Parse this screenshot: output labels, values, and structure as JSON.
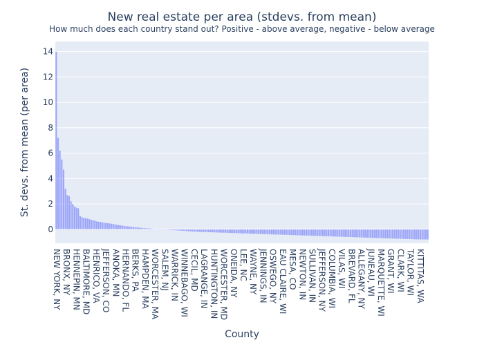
{
  "chart_data": {
    "type": "bar",
    "title": "New real estate per area (stdevs. from mean)",
    "subtitle": "How much does each country stand out? Positive - above average, negative - below average",
    "xlabel": "County",
    "ylabel": "St. devs. from mean (per area)",
    "ylim": [
      -1.1,
      14.8
    ],
    "yticks": [
      0,
      2,
      4,
      6,
      8,
      10,
      12,
      14
    ],
    "grid": true,
    "legend": "none",
    "x_tick_labels": [
      "NEW YORK, NY",
      "BRONX, NY",
      "HENNEPIN, MN",
      "BALTIMORE, MD",
      "HENRICO, VA",
      "JEFFERSON, CO",
      "ANOKA, MN",
      "HERNANDO, FL",
      "BERKS, PA",
      "HAMPDEN, MA",
      "WORCESTER, MA",
      "SALEM, NJ",
      "WARRICK, IN",
      "WINNEBAGO, WI",
      "CECIL, MD",
      "LAGRANGE, IN",
      "HUNTINGTON, IN",
      "WORCESTER, MD",
      "ONEIDA, NY",
      "LEE, NC",
      "WAYNE, NY",
      "JENNINGS, IN",
      "OSWEGO, NY",
      "EAU CLAIRE, WI",
      "MESA, CO",
      "NEWTON, IN",
      "SULLIVAN, IN",
      "JEFFERSON, NY",
      "COLUMBIA, WI",
      "VILAS, WI",
      "BREVARD, FL",
      "ALLEGANY, NY",
      "JUNEAU, WI",
      "MARQUETTE, WI",
      "GRANT, WI",
      "CLARK, WI",
      "TAYLOR, WI",
      "KITTITAS, WA"
    ],
    "values": [
      14.0,
      7.2,
      6.2,
      5.5,
      4.7,
      3.2,
      2.7,
      2.6,
      2.2,
      2.0,
      1.8,
      1.7,
      1.65,
      1.05,
      0.95,
      0.9,
      0.88,
      0.85,
      0.8,
      0.75,
      0.72,
      0.68,
      0.62,
      0.6,
      0.58,
      0.55,
      0.52,
      0.5,
      0.48,
      0.46,
      0.44,
      0.42,
      0.38,
      0.36,
      0.33,
      0.31,
      0.29,
      0.27,
      0.25,
      0.23,
      0.21,
      0.2,
      0.18,
      0.16,
      0.15,
      0.13,
      0.12,
      0.1,
      0.09,
      0.08,
      0.07,
      0.06,
      0.05,
      0.04,
      0.03,
      0.02,
      0.01,
      0.0,
      -0.01,
      -0.02,
      -0.03,
      -0.04,
      -0.05,
      -0.06,
      -0.07,
      -0.08,
      -0.09,
      -0.1,
      -0.11,
      -0.12,
      -0.13,
      -0.14,
      -0.15,
      -0.16,
      -0.17,
      -0.18,
      -0.19,
      -0.2,
      -0.2,
      -0.21,
      -0.21,
      -0.22,
      -0.22,
      -0.23,
      -0.23,
      -0.24,
      -0.24,
      -0.25,
      -0.25,
      -0.26,
      -0.26,
      -0.27,
      -0.27,
      -0.28,
      -0.28,
      -0.29,
      -0.29,
      -0.3,
      -0.3,
      -0.31,
      -0.31,
      -0.32,
      -0.32,
      -0.33,
      -0.33,
      -0.34,
      -0.34,
      -0.35,
      -0.35,
      -0.36,
      -0.36,
      -0.37,
      -0.37,
      -0.38,
      -0.38,
      -0.39,
      -0.39,
      -0.4,
      -0.4,
      -0.41,
      -0.41,
      -0.42,
      -0.42,
      -0.43,
      -0.43,
      -0.44,
      -0.44,
      -0.45,
      -0.45,
      -0.46,
      -0.46,
      -0.47,
      -0.47,
      -0.48,
      -0.48,
      -0.49,
      -0.49,
      -0.5,
      -0.5,
      -0.51,
      -0.51,
      -0.52,
      -0.52,
      -0.53,
      -0.53,
      -0.54,
      -0.54,
      -0.55,
      -0.55,
      -0.56,
      -0.56,
      -0.57,
      -0.57,
      -0.58,
      -0.58,
      -0.59,
      -0.59,
      -0.6,
      -0.6,
      -0.61,
      -0.61,
      -0.62,
      -0.62,
      -0.63,
      -0.63,
      -0.64,
      -0.64,
      -0.65,
      -0.65,
      -0.66,
      -0.66,
      -0.67,
      -0.67,
      -0.68,
      -0.68,
      -0.69,
      -0.69,
      -0.7,
      -0.7,
      -0.71,
      -0.71,
      -0.72,
      -0.72,
      -0.73,
      -0.73,
      -0.74,
      -0.74,
      -0.75,
      -0.75,
      -0.76,
      -0.76,
      -0.77,
      -0.77,
      -0.78,
      -0.78,
      -0.79,
      -0.79,
      -0.8,
      -0.8,
      -0.8,
      -0.8,
      -0.8,
      -0.8
    ]
  },
  "colors": {
    "bar": "#636efa",
    "plot_bg": "#e5ecf6",
    "grid": "#ffffff",
    "text": "#2a3f5f"
  }
}
